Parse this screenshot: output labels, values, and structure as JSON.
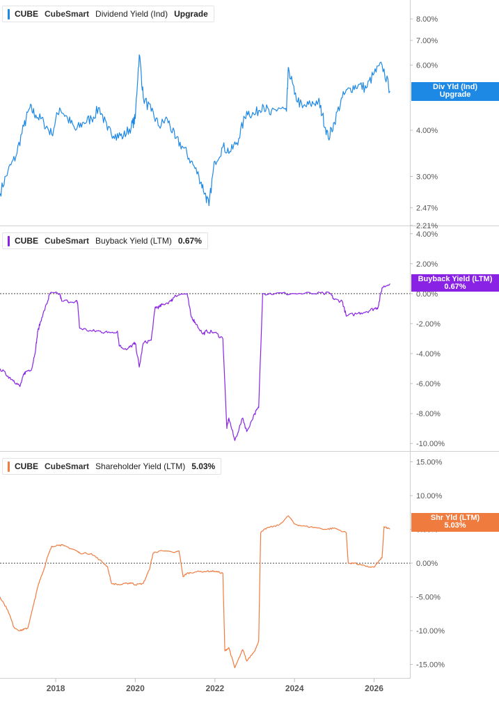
{
  "chart_data": [
    {
      "type": "line",
      "ticker": "CUBE",
      "company": "CubeSmart",
      "metric": "Dividend Yield (Ind)",
      "legend_value": "Upgrade",
      "color": "#1e88e5",
      "y_scale": "log",
      "ylim": [
        2.21,
        9.0
      ],
      "yticks": [
        "8.00%",
        "7.00%",
        "6.00%",
        "4.00%",
        "3.00%",
        "2.47%",
        "2.21%"
      ],
      "ytick_values": [
        8,
        7,
        6,
        4,
        3,
        2.47,
        2.21
      ],
      "zero_line": false,
      "current_label": [
        "Div Yld (Ind)",
        "Upgrade"
      ],
      "current_value": 5.1,
      "x": [
        2016.6,
        2016.8,
        2017.0,
        2017.2,
        2017.35,
        2017.5,
        2017.7,
        2017.9,
        2018.1,
        2018.3,
        2018.5,
        2018.7,
        2018.9,
        2019.1,
        2019.3,
        2019.5,
        2019.7,
        2019.9,
        2020.0,
        2020.1,
        2020.2,
        2020.4,
        2020.6,
        2020.8,
        2021.0,
        2021.2,
        2021.4,
        2021.6,
        2021.75,
        2021.85,
        2022.0,
        2022.2,
        2022.4,
        2022.6,
        2022.8,
        2023.0,
        2023.2,
        2023.4,
        2023.6,
        2023.8,
        2023.85,
        2024.0,
        2024.2,
        2024.4,
        2024.6,
        2024.7,
        2024.85,
        2025.0,
        2025.2,
        2025.4,
        2025.6,
        2025.8,
        2026.0,
        2026.2,
        2026.4
      ],
      "y": [
        2.7,
        3.1,
        3.4,
        4.1,
        4.6,
        4.4,
        4.2,
        3.9,
        4.6,
        4.3,
        4.0,
        4.2,
        4.3,
        4.6,
        4.0,
        3.9,
        3.85,
        4.1,
        4.3,
        6.4,
        4.9,
        4.5,
        4.1,
        4.3,
        3.8,
        3.6,
        3.3,
        3.0,
        2.7,
        2.5,
        3.3,
        3.6,
        3.5,
        3.8,
        4.5,
        4.4,
        4.7,
        4.4,
        4.6,
        4.5,
        5.9,
        5.0,
        4.6,
        4.7,
        4.8,
        4.4,
        3.8,
        4.2,
        4.9,
        5.2,
        5.3,
        5.2,
        5.7,
        6.0,
        5.1
      ]
    },
    {
      "type": "line",
      "ticker": "CUBE",
      "company": "CubeSmart",
      "metric": "Buyback Yield (LTM)",
      "legend_value": "0.67%",
      "color": "#8a22e6",
      "y_scale": "linear",
      "ylim": [
        -10.5,
        4.5
      ],
      "yticks": [
        "4.00%",
        "2.00%",
        "0.00%",
        "-2.00%",
        "-4.00%",
        "-6.00%",
        "-8.00%",
        "-10.00%"
      ],
      "ytick_values": [
        4,
        2,
        0,
        -2,
        -4,
        -6,
        -8,
        -10
      ],
      "zero_line": true,
      "current_label": [
        "Buyback Yield (LTM)",
        "0.67%"
      ],
      "current_value": 0.67,
      "x": [
        2016.6,
        2016.8,
        2016.95,
        2017.1,
        2017.2,
        2017.25,
        2017.4,
        2017.5,
        2017.55,
        2017.65,
        2017.8,
        2017.85,
        2018.1,
        2018.15,
        2018.5,
        2018.55,
        2018.6,
        2018.9,
        2019.1,
        2019.3,
        2019.55,
        2019.6,
        2019.8,
        2019.9,
        2020.0,
        2020.1,
        2020.2,
        2020.4,
        2020.5,
        2020.6,
        2020.7,
        2020.9,
        2021.0,
        2021.3,
        2021.4,
        2021.5,
        2021.7,
        2021.8,
        2022.0,
        2022.2,
        2022.3,
        2022.35,
        2022.5,
        2022.7,
        2022.8,
        2023.0,
        2023.1,
        2023.2,
        2023.5,
        2024.0,
        2024.5,
        2024.9,
        2025.0,
        2025.2,
        2025.3,
        2025.6,
        2025.8,
        2026.0,
        2026.1,
        2026.2,
        2026.4
      ],
      "y": [
        -5.0,
        -5.5,
        -5.8,
        -6.2,
        -5.4,
        -5.2,
        -5.0,
        -3.6,
        -2.5,
        -1.6,
        -0.5,
        0.0,
        0.0,
        -0.5,
        -0.5,
        -0.6,
        -2.3,
        -2.5,
        -2.5,
        -2.6,
        -2.5,
        -3.5,
        -3.7,
        -3.5,
        -3.3,
        -4.9,
        -3.3,
        -3.1,
        -0.9,
        -0.9,
        -0.7,
        -0.5,
        -0.1,
        0.0,
        -1.5,
        -1.9,
        -2.7,
        -2.5,
        -2.6,
        -3.0,
        -9.0,
        -8.3,
        -9.8,
        -8.3,
        -9.2,
        -8.0,
        -7.6,
        0.0,
        0.0,
        0.0,
        0.0,
        0.0,
        -0.4,
        -0.5,
        -1.5,
        -1.3,
        -1.2,
        -1.0,
        -0.9,
        0.4,
        0.67
      ]
    },
    {
      "type": "line",
      "ticker": "CUBE",
      "company": "CubeSmart",
      "metric": "Shareholder Yield (LTM)",
      "legend_value": "5.03%",
      "color": "#f07b3f",
      "y_scale": "linear",
      "ylim": [
        -17.0,
        16.5
      ],
      "yticks": [
        "15.00%",
        "10.00%",
        "5.00%",
        "0.00%",
        "-5.00%",
        "-10.00%",
        "-15.00%"
      ],
      "ytick_values": [
        15,
        10,
        5,
        0,
        -5,
        -10,
        -15
      ],
      "zero_line": true,
      "current_label": [
        "Shr Yld (LTM)",
        "5.03%"
      ],
      "current_value": 5.03,
      "x": [
        2016.6,
        2016.8,
        2016.95,
        2017.1,
        2017.2,
        2017.3,
        2017.45,
        2017.55,
        2017.6,
        2017.7,
        2017.8,
        2017.9,
        2018.1,
        2018.2,
        2018.5,
        2018.6,
        2018.9,
        2019.1,
        2019.3,
        2019.4,
        2019.6,
        2019.8,
        2019.9,
        2020.0,
        2020.2,
        2020.35,
        2020.45,
        2020.6,
        2021.0,
        2021.1,
        2021.2,
        2021.3,
        2021.5,
        2021.8,
        2022.0,
        2022.2,
        2022.25,
        2022.35,
        2022.5,
        2022.7,
        2022.8,
        2023.0,
        2023.1,
        2023.15,
        2023.3,
        2023.6,
        2023.85,
        2024.0,
        2024.2,
        2024.5,
        2024.8,
        2025.0,
        2025.3,
        2025.35,
        2025.5,
        2025.8,
        2026.0,
        2026.15,
        2026.2,
        2026.25,
        2026.4
      ],
      "y": [
        -5.0,
        -7.0,
        -9.5,
        -10.0,
        -9.8,
        -9.6,
        -6.0,
        -3.5,
        -2.5,
        -1.0,
        1.0,
        2.5,
        2.7,
        2.6,
        1.9,
        1.5,
        1.4,
        0.5,
        -0.5,
        -3.0,
        -3.2,
        -3.0,
        -2.9,
        -3.2,
        -3.0,
        -1.0,
        1.5,
        1.8,
        1.6,
        1.8,
        -2.0,
        -1.5,
        -1.3,
        -1.2,
        -1.2,
        -1.5,
        -13.0,
        -12.5,
        -15.5,
        -12.8,
        -14.5,
        -13.0,
        -11.5,
        4.5,
        5.2,
        5.6,
        7.0,
        5.8,
        5.5,
        5.3,
        5.0,
        5.2,
        4.5,
        0.0,
        0.0,
        -0.5,
        -0.6,
        0.5,
        0.8,
        5.4,
        5.03
      ]
    }
  ],
  "x_axis": {
    "ticks": [
      "2018",
      "2020",
      "2022",
      "2024",
      "2026"
    ],
    "tick_values": [
      2018,
      2020,
      2022,
      2024,
      2026
    ],
    "range": [
      2016.6,
      2026.9
    ]
  }
}
